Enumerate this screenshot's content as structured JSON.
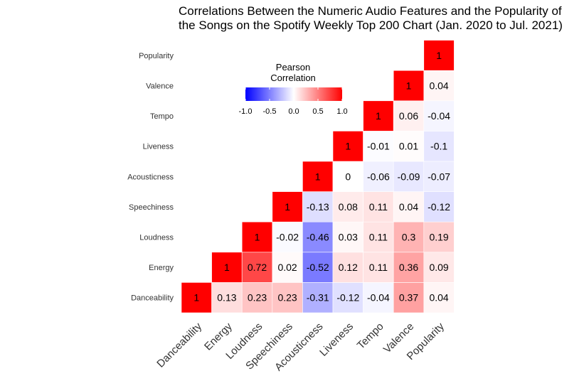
{
  "chart_data": {
    "type": "heatmap",
    "title_lines": [
      "Correlations Between the Numeric Audio Features and the Popularity of",
      "the Songs on the Spotify Weekly Top 200 Chart (Jan. 2020 to Jul. 2021)"
    ],
    "variables": [
      "Danceability",
      "Energy",
      "Loudness",
      "Speechiness",
      "Acousticness",
      "Liveness",
      "Tempo",
      "Valence",
      "Popularity"
    ],
    "x_tick_labels": [
      "Danceability",
      "Energy",
      "Loudness",
      "Speechiness",
      "Acousticness",
      "Liveness",
      "Tempo",
      "Valence",
      "Popularity"
    ],
    "y_tick_labels": [
      "Danceability",
      "Energy",
      "Loudness",
      "Speechiness",
      "Acousticness",
      "Liveness",
      "Tempo",
      "Valence",
      "Popularity"
    ],
    "cells": [
      {
        "x": "Danceability",
        "y": "Danceability",
        "value": 1,
        "label": "1"
      },
      {
        "x": "Energy",
        "y": "Danceability",
        "value": 0.13,
        "label": "0.13"
      },
      {
        "x": "Loudness",
        "y": "Danceability",
        "value": 0.23,
        "label": "0.23"
      },
      {
        "x": "Speechiness",
        "y": "Danceability",
        "value": 0.23,
        "label": "0.23"
      },
      {
        "x": "Acousticness",
        "y": "Danceability",
        "value": -0.31,
        "label": "-0.31"
      },
      {
        "x": "Liveness",
        "y": "Danceability",
        "value": -0.12,
        "label": "-0.12"
      },
      {
        "x": "Tempo",
        "y": "Danceability",
        "value": -0.04,
        "label": "-0.04"
      },
      {
        "x": "Valence",
        "y": "Danceability",
        "value": 0.37,
        "label": "0.37"
      },
      {
        "x": "Popularity",
        "y": "Danceability",
        "value": 0.04,
        "label": "0.04"
      },
      {
        "x": "Energy",
        "y": "Energy",
        "value": 1,
        "label": "1"
      },
      {
        "x": "Loudness",
        "y": "Energy",
        "value": 0.72,
        "label": "0.72"
      },
      {
        "x": "Speechiness",
        "y": "Energy",
        "value": 0.02,
        "label": "0.02"
      },
      {
        "x": "Acousticness",
        "y": "Energy",
        "value": -0.52,
        "label": "-0.52"
      },
      {
        "x": "Liveness",
        "y": "Energy",
        "value": 0.12,
        "label": "0.12"
      },
      {
        "x": "Tempo",
        "y": "Energy",
        "value": 0.11,
        "label": "0.11"
      },
      {
        "x": "Valence",
        "y": "Energy",
        "value": 0.36,
        "label": "0.36"
      },
      {
        "x": "Popularity",
        "y": "Energy",
        "value": 0.09,
        "label": "0.09"
      },
      {
        "x": "Loudness",
        "y": "Loudness",
        "value": 1,
        "label": "1"
      },
      {
        "x": "Speechiness",
        "y": "Loudness",
        "value": -0.02,
        "label": "-0.02"
      },
      {
        "x": "Acousticness",
        "y": "Loudness",
        "value": -0.46,
        "label": "-0.46"
      },
      {
        "x": "Liveness",
        "y": "Loudness",
        "value": 0.03,
        "label": "0.03"
      },
      {
        "x": "Tempo",
        "y": "Loudness",
        "value": 0.11,
        "label": "0.11"
      },
      {
        "x": "Valence",
        "y": "Loudness",
        "value": 0.3,
        "label": "0.3"
      },
      {
        "x": "Popularity",
        "y": "Loudness",
        "value": 0.19,
        "label": "0.19"
      },
      {
        "x": "Speechiness",
        "y": "Speechiness",
        "value": 1,
        "label": "1"
      },
      {
        "x": "Acousticness",
        "y": "Speechiness",
        "value": -0.13,
        "label": "-0.13"
      },
      {
        "x": "Liveness",
        "y": "Speechiness",
        "value": 0.08,
        "label": "0.08"
      },
      {
        "x": "Tempo",
        "y": "Speechiness",
        "value": 0.11,
        "label": "0.11"
      },
      {
        "x": "Valence",
        "y": "Speechiness",
        "value": 0.04,
        "label": "0.04"
      },
      {
        "x": "Popularity",
        "y": "Speechiness",
        "value": -0.12,
        "label": "-0.12"
      },
      {
        "x": "Acousticness",
        "y": "Acousticness",
        "value": 1,
        "label": "1"
      },
      {
        "x": "Liveness",
        "y": "Acousticness",
        "value": 0,
        "label": "0"
      },
      {
        "x": "Tempo",
        "y": "Acousticness",
        "value": -0.06,
        "label": "-0.06"
      },
      {
        "x": "Valence",
        "y": "Acousticness",
        "value": -0.09,
        "label": "-0.09"
      },
      {
        "x": "Popularity",
        "y": "Acousticness",
        "value": -0.07,
        "label": "-0.07"
      },
      {
        "x": "Liveness",
        "y": "Liveness",
        "value": 1,
        "label": "1"
      },
      {
        "x": "Tempo",
        "y": "Liveness",
        "value": -0.01,
        "label": "-0.01"
      },
      {
        "x": "Valence",
        "y": "Liveness",
        "value": 0.01,
        "label": "0.01"
      },
      {
        "x": "Popularity",
        "y": "Liveness",
        "value": -0.1,
        "label": "-0.1"
      },
      {
        "x": "Tempo",
        "y": "Tempo",
        "value": 1,
        "label": "1"
      },
      {
        "x": "Valence",
        "y": "Tempo",
        "value": 0.06,
        "label": "0.06"
      },
      {
        "x": "Popularity",
        "y": "Tempo",
        "value": -0.04,
        "label": "-0.04"
      },
      {
        "x": "Valence",
        "y": "Valence",
        "value": 1,
        "label": "1"
      },
      {
        "x": "Popularity",
        "y": "Valence",
        "value": 0.04,
        "label": "0.04"
      },
      {
        "x": "Popularity",
        "y": "Popularity",
        "value": 1,
        "label": "1"
      }
    ],
    "legend": {
      "title_lines": [
        "Pearson",
        "Correlation"
      ],
      "range": [
        -1,
        1
      ],
      "ticks": [
        -1,
        -0.5,
        0,
        0.5,
        1
      ],
      "tick_labels": [
        "-1.0",
        "-0.5",
        "0.0",
        "0.5",
        "1.0"
      ],
      "placement": "inside-top-left"
    },
    "color_scale": {
      "low": "#0000FF",
      "mid": "#FFFFFF",
      "high": "#FF0000"
    },
    "grid": false
  }
}
